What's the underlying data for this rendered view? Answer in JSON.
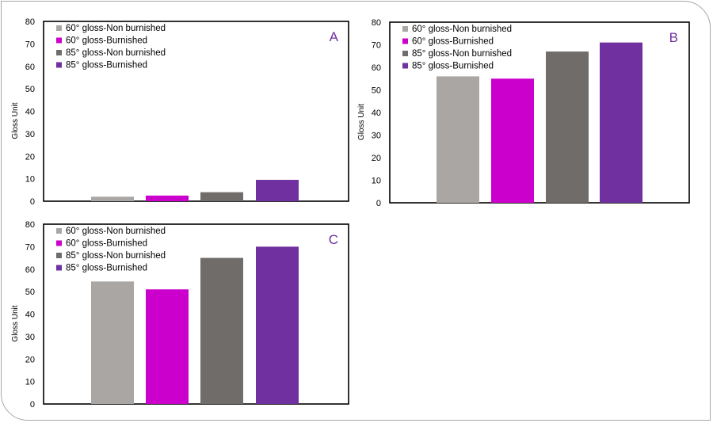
{
  "chart_data": [
    {
      "type": "bar",
      "panel_label": "A",
      "ylabel": "Gloss Unit",
      "ylim": [
        0,
        80
      ],
      "yticks": [
        0,
        10,
        20,
        30,
        40,
        50,
        60,
        70,
        80
      ],
      "legend_position": "top-left",
      "series": [
        {
          "name": "60° gloss-Non burnished",
          "value": 2,
          "color": "#aaa6a4"
        },
        {
          "name": "60° gloss-Burnished",
          "value": 2.5,
          "color": "#cc00cc"
        },
        {
          "name": "85° gloss-Non burnished",
          "value": 4,
          "color": "#706c6a"
        },
        {
          "name": "85° gloss-Burnished",
          "value": 9.5,
          "color": "#7030a0"
        }
      ]
    },
    {
      "type": "bar",
      "panel_label": "B",
      "ylabel": "Gloss Unit",
      "ylim": [
        0,
        80
      ],
      "yticks": [
        0,
        10,
        20,
        30,
        40,
        50,
        60,
        70,
        80
      ],
      "legend_position": "top-left",
      "series": [
        {
          "name": "60° gloss-Non burnished",
          "value": 56,
          "color": "#aaa6a4"
        },
        {
          "name": "60° gloss-Burnished",
          "value": 55,
          "color": "#cc00cc"
        },
        {
          "name": "85° gloss-Non burnished",
          "value": 67,
          "color": "#706c6a"
        },
        {
          "name": "85° gloss-Burnished",
          "value": 71,
          "color": "#7030a0"
        }
      ]
    },
    {
      "type": "bar",
      "panel_label": "C",
      "ylabel": "Gloss Unit",
      "ylim": [
        0,
        80
      ],
      "yticks": [
        0,
        10,
        20,
        30,
        40,
        50,
        60,
        70,
        80
      ],
      "legend_position": "top-left",
      "series": [
        {
          "name": "60° gloss-Non burnished",
          "value": 54.5,
          "color": "#aaa6a4"
        },
        {
          "name": "60° gloss-Burnished",
          "value": 51,
          "color": "#cc00cc"
        },
        {
          "name": "85° gloss-Non burnished",
          "value": 65,
          "color": "#706c6a"
        },
        {
          "name": "85° gloss-Burnished",
          "value": 70,
          "color": "#7030a0"
        }
      ]
    }
  ],
  "colors": {
    "panel_letter": "#7030a0",
    "axis": "#000000",
    "frame": "#a6a6a6"
  }
}
